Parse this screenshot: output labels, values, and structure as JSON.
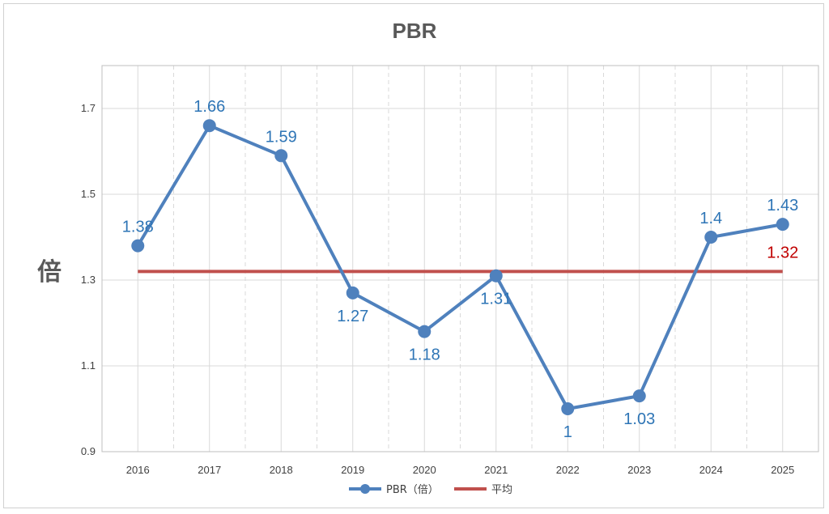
{
  "chart_data": {
    "type": "line",
    "title": "PBR",
    "ylabel": "倍",
    "xlabel": "",
    "categories": [
      "2016",
      "2017",
      "2018",
      "2019",
      "2020",
      "2021",
      "2022",
      "2023",
      "2024",
      "2025"
    ],
    "series": [
      {
        "name": "PBR（倍）",
        "values": [
          1.38,
          1.66,
          1.59,
          1.27,
          1.18,
          1.31,
          1.0,
          1.03,
          1.4,
          1.43
        ],
        "color": "#4f81bd",
        "label_color": "#2e75b6",
        "markers": true
      },
      {
        "name": "平均",
        "values": [
          1.32,
          1.32,
          1.32,
          1.32,
          1.32,
          1.32,
          1.32,
          1.32,
          1.32,
          1.32
        ],
        "color": "#c0504d",
        "label_color": "#c00000",
        "markers": false
      }
    ],
    "data_labels": [
      "1.38",
      "1.66",
      "1.59",
      "1.27",
      "1.18",
      "1.31",
      "1",
      "1.03",
      "1.4",
      "1.43"
    ],
    "average_label": "1.32",
    "ylim": [
      0.9,
      1.8
    ],
    "yticks": [
      0.9,
      1.1,
      1.3,
      1.5,
      1.7
    ],
    "ytick_labels": [
      "0.9",
      "1.1",
      "1.3",
      "1.5",
      "1.7"
    ],
    "grid": true,
    "legend": "bottom"
  }
}
